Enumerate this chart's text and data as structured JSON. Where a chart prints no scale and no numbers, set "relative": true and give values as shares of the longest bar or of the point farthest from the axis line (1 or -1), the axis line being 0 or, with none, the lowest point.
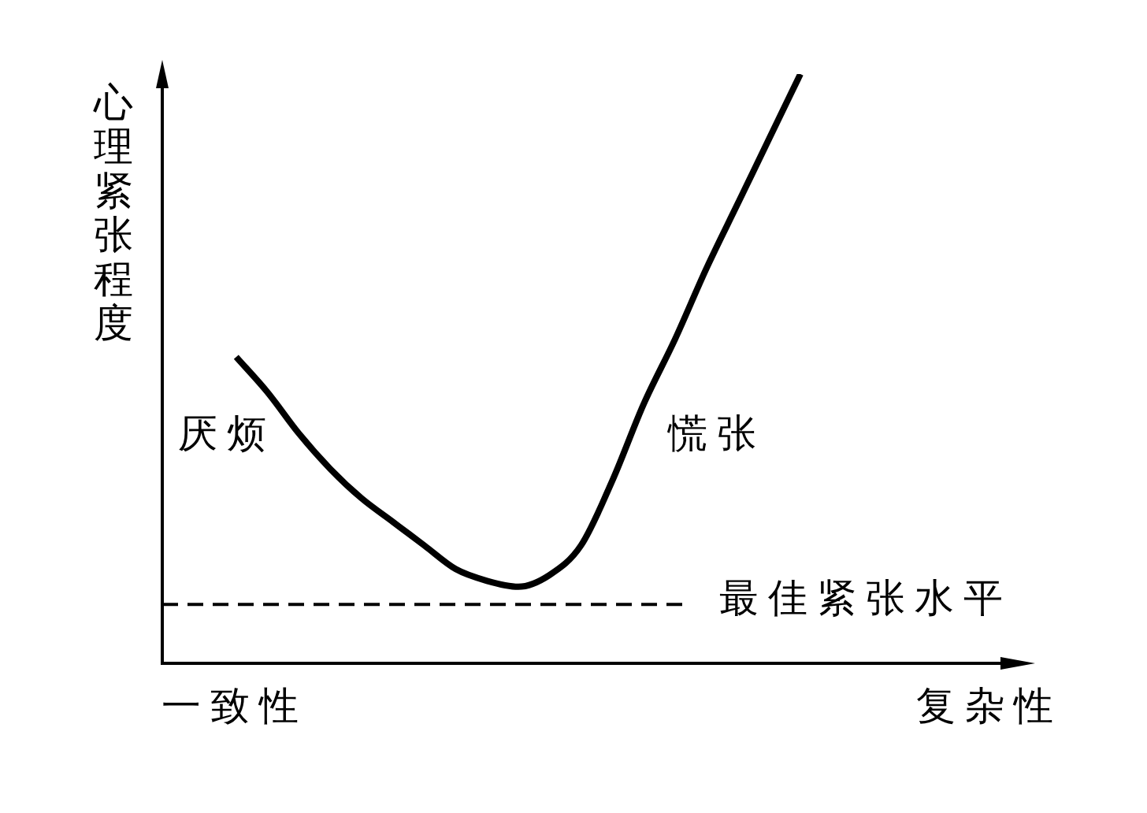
{
  "chart_data": {
    "type": "line",
    "relative": true,
    "ylabel": "心理紧张程度",
    "xlabel": "复杂性",
    "categories": [
      null,
      null,
      null,
      null,
      null,
      null,
      null,
      null,
      null,
      null,
      null,
      null,
      null,
      null,
      null,
      null,
      null,
      null,
      null
    ],
    "series": [
      {
        "color": "#000000",
        "values": [
          0.52,
          0.46,
          0.39,
          0.33,
          0.28,
          0.24,
          0.2,
          0.16,
          0.14,
          0.13,
          0.15,
          0.2,
          0.31,
          0.44,
          0.55,
          0.67,
          0.78,
          0.89,
          1
        ]
      }
    ],
    "marker": "none",
    "ref_lines": [
      {
        "axis": "y",
        "value": 0.1,
        "label": "最佳紧张水平",
        "color": "#000000",
        "line_style": "dashed"
      }
    ],
    "annotations": [
      "厌烦",
      "慌张",
      "一致性"
    ]
  }
}
